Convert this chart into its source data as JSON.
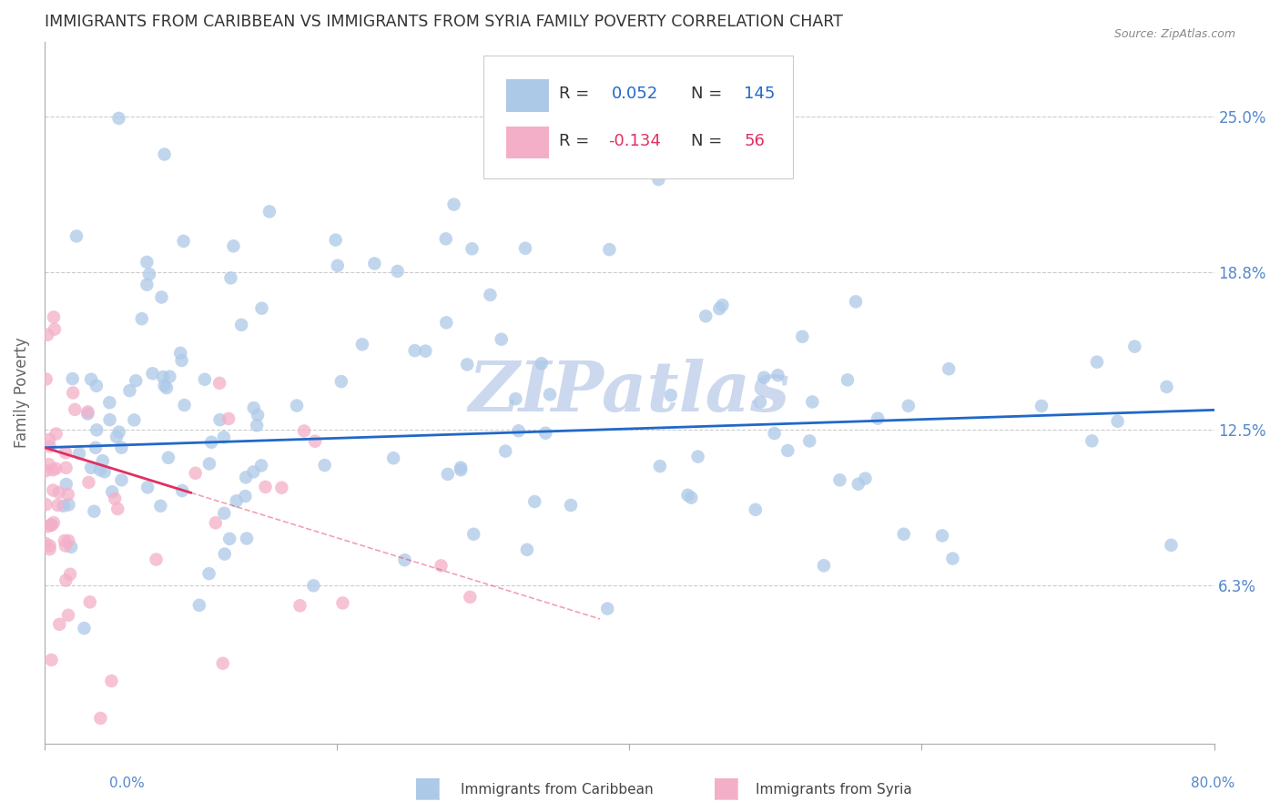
{
  "title": "IMMIGRANTS FROM CARIBBEAN VS IMMIGRANTS FROM SYRIA FAMILY POVERTY CORRELATION CHART",
  "source": "Source: ZipAtlas.com",
  "ylabel": "Family Poverty",
  "y_ticks": [
    0.063,
    0.125,
    0.188,
    0.25
  ],
  "y_tick_labels": [
    "6.3%",
    "12.5%",
    "18.8%",
    "25.0%"
  ],
  "xlim": [
    0.0,
    0.8
  ],
  "ylim": [
    0.0,
    0.28
  ],
  "caribbean_R": 0.052,
  "caribbean_N": 145,
  "syria_R": -0.134,
  "syria_N": 56,
  "caribbean_color": "#adc9e8",
  "caribbean_edge": "#adc9e8",
  "syria_color": "#f4afc8",
  "syria_edge": "#f4afc8",
  "trendline_caribbean_color": "#2068c8",
  "trendline_syria_color": "#e03060",
  "background_color": "#ffffff",
  "grid_color": "#cccccc",
  "title_color": "#333333",
  "axis_label_color": "#5588cc",
  "watermark_color": "#ccd8ee"
}
